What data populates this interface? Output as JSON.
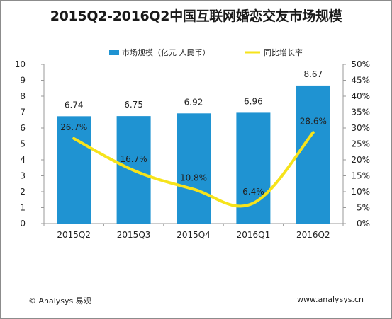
{
  "chart_data": {
    "type": "bar",
    "title": "2015Q2-2016Q2中国互联网婚恋交友市场规模",
    "categories": [
      "2015Q2",
      "2015Q3",
      "2015Q4",
      "2016Q1",
      "2016Q2"
    ],
    "series": [
      {
        "name": "市场规模（亿元 人民币）",
        "kind": "bar",
        "axis": "left",
        "color": "#1f93d2",
        "values": [
          6.74,
          6.75,
          6.92,
          6.96,
          8.67
        ],
        "labels": [
          "6.74",
          "6.75",
          "6.92",
          "6.96",
          "8.67"
        ]
      },
      {
        "name": "同比增长率",
        "kind": "line",
        "axis": "right",
        "color": "#f6e31b",
        "values": [
          26.7,
          16.7,
          10.8,
          6.4,
          28.6
        ],
        "labels": [
          "26.7%",
          "16.7%",
          "10.8%",
          "6.4%",
          "28.6%"
        ]
      }
    ],
    "y_left": {
      "min": 0,
      "max": 10,
      "ticks": [
        "0",
        "1",
        "2",
        "3",
        "4",
        "5",
        "6",
        "7",
        "8",
        "9",
        "10"
      ]
    },
    "y_right": {
      "min": 0,
      "max": 50,
      "ticks": [
        "0%",
        "5%",
        "10%",
        "15%",
        "20%",
        "25%",
        "30%",
        "35%",
        "40%",
        "45%",
        "50%"
      ]
    },
    "grid": false,
    "legend": "top"
  },
  "footer": {
    "source": "© Analysys 易观",
    "website": "www.analysys.cn"
  }
}
